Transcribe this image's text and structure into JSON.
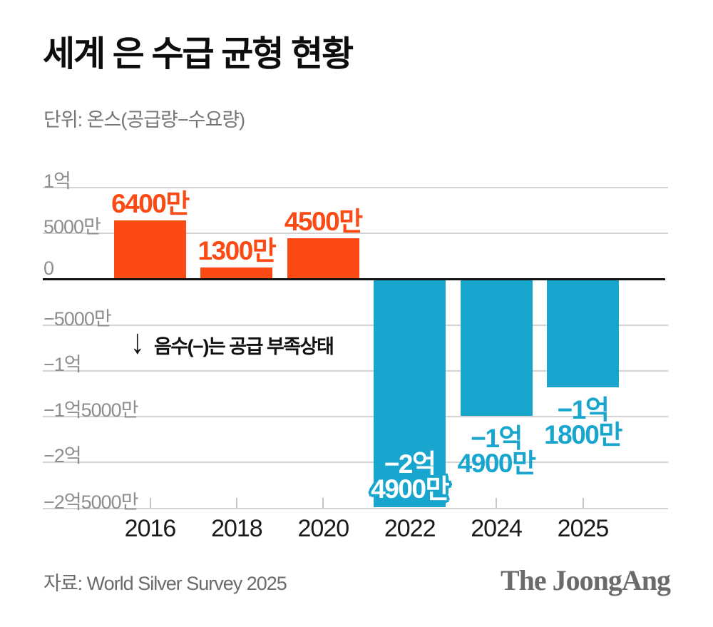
{
  "title": "세계 은 수급 균형 현황",
  "subtitle": "단위: 온스(공급량−수요량)",
  "annotation": {
    "arrow_icon": "↓",
    "text": "음수(−)는 공급 부족상태"
  },
  "footer": {
    "source": "자료: World Silver Survey 2025",
    "brand": "The JoongAng"
  },
  "colors": {
    "positive_bar": "#fb4a14",
    "negative_bar": "#18a6cf",
    "gridline": "#d3d3d3",
    "zero_line": "#121212",
    "axis_label": "#8e8e8e",
    "year_label": "#1a1a1a"
  },
  "chart_data": {
    "type": "bar",
    "title": "세계 은 수급 균형 현황",
    "unit_note": "단위: 온스(공급량−수요량)",
    "categories": [
      "2016",
      "2018",
      "2020",
      "2022",
      "2024",
      "2025"
    ],
    "values": [
      64000000,
      13000000,
      45000000,
      -249000000,
      -149000000,
      -118000000
    ],
    "bar_labels": [
      [
        "6400만"
      ],
      [
        "1300만"
      ],
      [
        "4500만"
      ],
      [
        "−2억",
        "4900만"
      ],
      [
        "−1억",
        "4900만"
      ],
      [
        "−1억",
        "1800만"
      ]
    ],
    "bar_label_styles": [
      "above",
      "above",
      "above",
      "inside-white",
      "below",
      "below"
    ],
    "y_ticks": [
      {
        "label": "1억",
        "value": 100000000
      },
      {
        "label": "5000만",
        "value": 50000000
      },
      {
        "label": "0",
        "value": 0
      },
      {
        "label": "−5000만",
        "value": -50000000
      },
      {
        "label": "−1억",
        "value": -100000000
      },
      {
        "label": "−1억5000만",
        "value": -150000000
      },
      {
        "label": "−2억",
        "value": -200000000
      },
      {
        "label": "−2억5000만",
        "value": -250000000
      }
    ],
    "ylim": [
      100000000,
      -250000000
    ],
    "grid": true,
    "legend": null
  }
}
